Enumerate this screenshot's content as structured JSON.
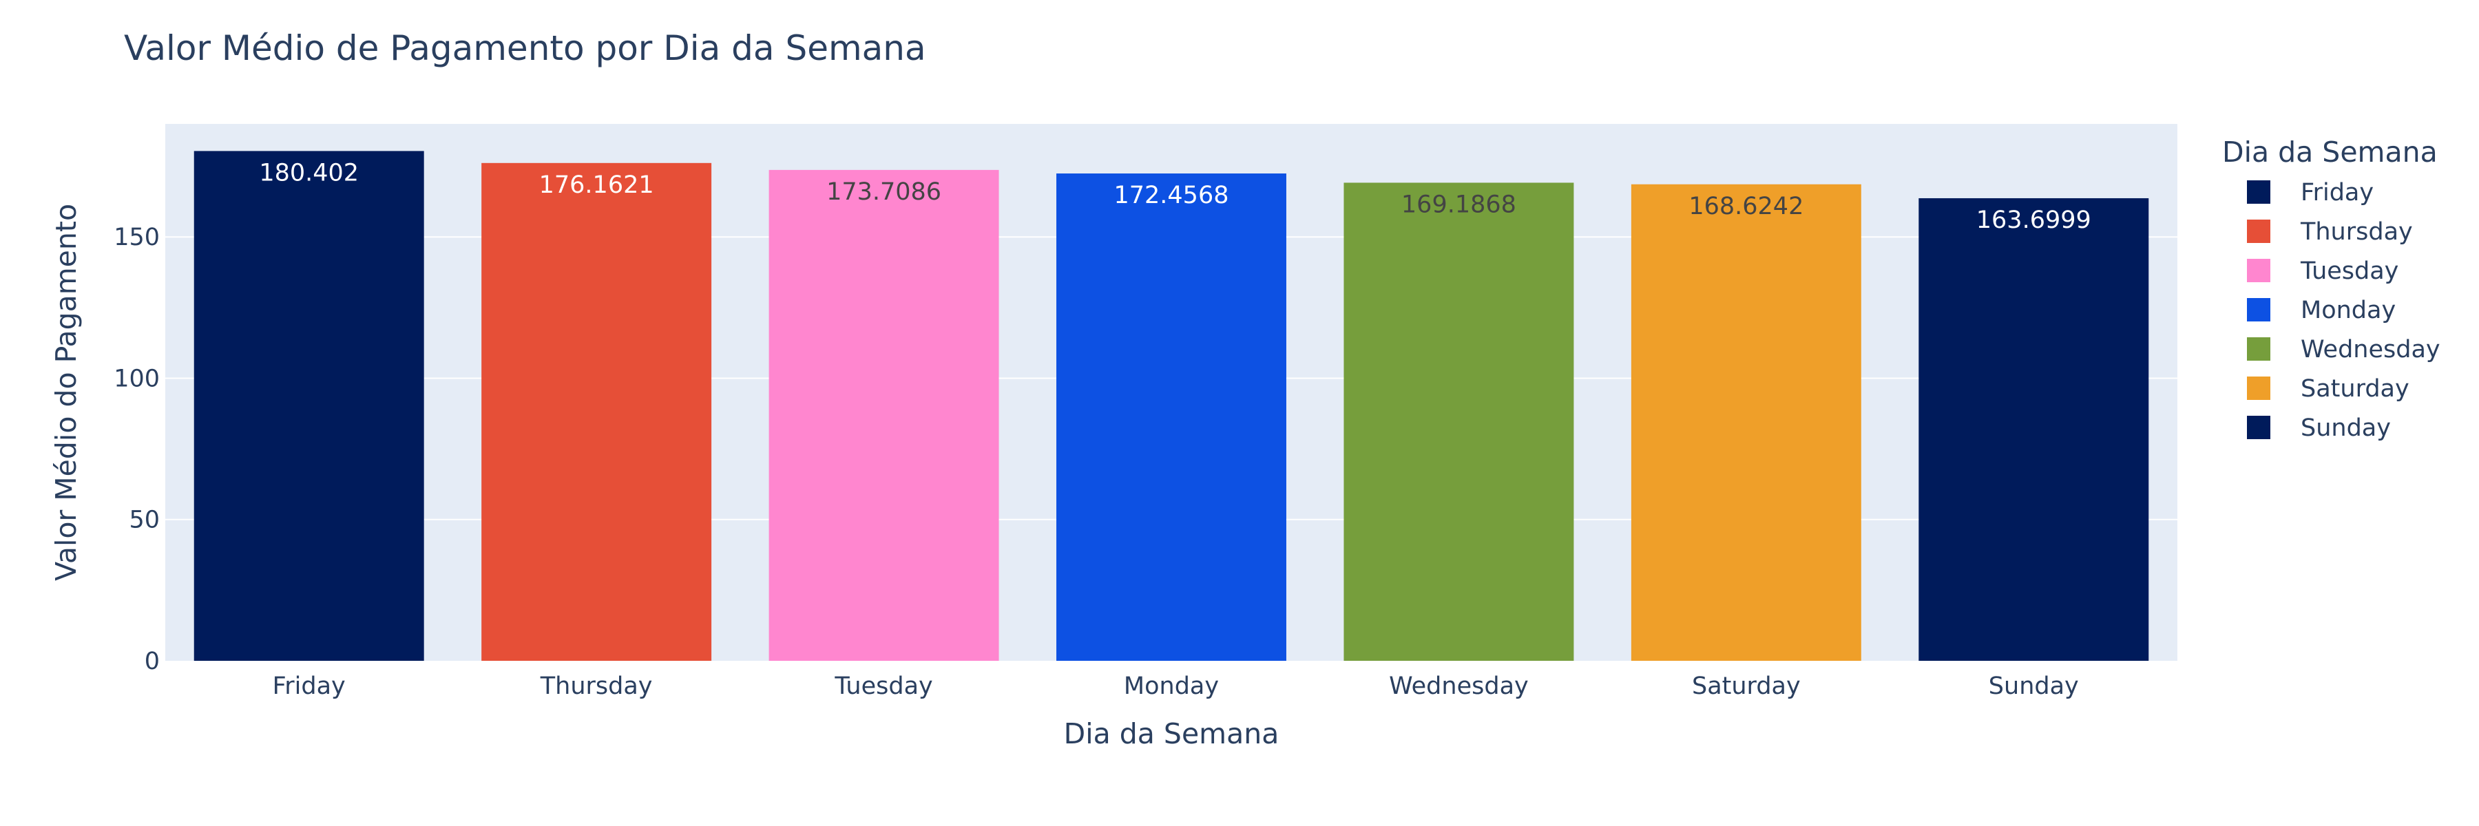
{
  "chart_data": {
    "type": "bar",
    "title": "Valor Médio de Pagamento por Dia da Semana",
    "xlabel": "Dia da Semana",
    "ylabel": "Valor Médio do Pagamento",
    "ylim": [
      0,
      190
    ],
    "yticks": [
      0,
      50,
      100,
      150
    ],
    "grid": true,
    "legend_title": "Dia da Semana",
    "legend_position": "right",
    "colors": {
      "plot_bg": "#E5ECF6",
      "grid": "#FFFFFF",
      "text": "#2a3f5f"
    },
    "series": [
      {
        "name": "Friday",
        "value": 180.402,
        "label": "180.402",
        "color": "#001B5B",
        "label_color": "#FFFFFF"
      },
      {
        "name": "Thursday",
        "value": 176.1621,
        "label": "176.1621",
        "color": "#E64F37",
        "label_color": "#FFFFFF"
      },
      {
        "name": "Tuesday",
        "value": 173.7086,
        "label": "173.7086",
        "color": "#FF86CF",
        "label_color": "#444444"
      },
      {
        "name": "Monday",
        "value": 172.4568,
        "label": "172.4568",
        "color": "#0D51E3",
        "label_color": "#FFFFFF"
      },
      {
        "name": "Wednesday",
        "value": 169.1868,
        "label": "169.1868",
        "color": "#769E3C",
        "label_color": "#444444"
      },
      {
        "name": "Saturday",
        "value": 168.6242,
        "label": "168.6242",
        "color": "#EF9F29",
        "label_color": "#444444"
      },
      {
        "name": "Sunday",
        "value": 163.6999,
        "label": "163.6999",
        "color": "#001B5B",
        "label_color": "#FFFFFF"
      }
    ]
  }
}
